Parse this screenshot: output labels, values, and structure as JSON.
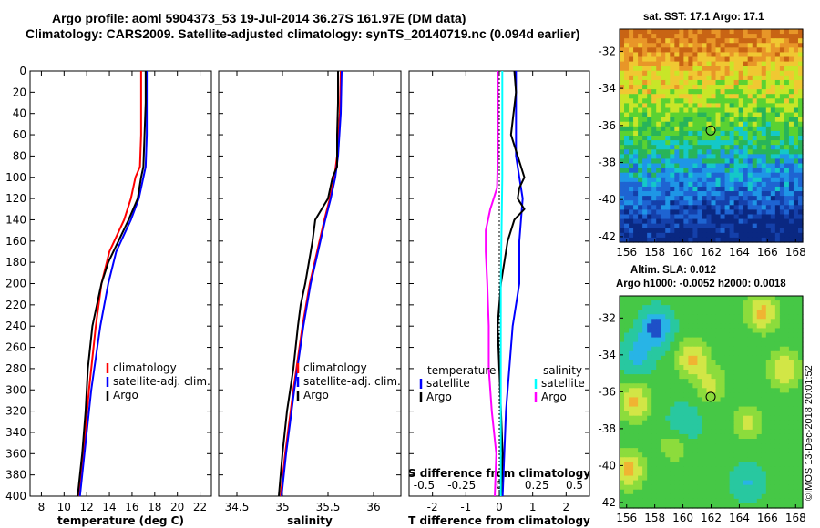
{
  "header": {
    "line1": "Argo profile: aoml 5904373_53 19-Jul-2014 36.27S 161.97E (DM data)",
    "line2": "Climatology: CARS2009. Satellite-adjusted climatology: synTS_20140719.nc (0.094d earlier)"
  },
  "colors": {
    "climatology": "#ff0000",
    "satellite": "#0000ff",
    "argo": "#000000",
    "sal_satellite": "#00ffff",
    "sal_argo": "#ff00ff"
  },
  "chart_data": [
    {
      "type": "line",
      "name": "temperature-panel",
      "xlabel": "temperature (deg C)",
      "ylabel": "depth",
      "xlim": [
        7,
        23
      ],
      "ylim": [
        400,
        0
      ],
      "xticks": [
        8,
        10,
        12,
        14,
        16,
        18,
        20,
        22
      ],
      "yticks": [
        0,
        20,
        40,
        60,
        80,
        100,
        120,
        140,
        160,
        180,
        200,
        220,
        240,
        260,
        280,
        300,
        320,
        340,
        360,
        380,
        400
      ],
      "legend": [
        "climatology",
        "satellite-adj. clim.",
        "Argo"
      ],
      "series": [
        {
          "name": "climatology",
          "color": "#ff0000",
          "depth": [
            0,
            20,
            60,
            90,
            100,
            120,
            140,
            170,
            200,
            240,
            300,
            360,
            400
          ],
          "values": [
            16.8,
            16.8,
            16.8,
            16.7,
            16.3,
            15.9,
            15.3,
            14.0,
            13.3,
            12.8,
            12.2,
            11.7,
            11.3
          ]
        },
        {
          "name": "satellite-adj. clim.",
          "color": "#0000ff",
          "depth": [
            0,
            20,
            60,
            90,
            100,
            120,
            140,
            170,
            200,
            240,
            300,
            360,
            400
          ],
          "values": [
            17.3,
            17.3,
            17.3,
            17.2,
            17.0,
            16.6,
            15.9,
            14.6,
            13.9,
            13.2,
            12.4,
            11.8,
            11.4
          ]
        },
        {
          "name": "Argo",
          "color": "#000000",
          "depth": [
            0,
            30,
            60,
            90,
            100,
            120,
            140,
            160,
            180,
            200,
            220,
            240,
            280,
            320,
            360,
            400
          ],
          "values": [
            17.2,
            17.2,
            17.1,
            17.0,
            16.8,
            16.5,
            15.7,
            14.8,
            13.9,
            13.3,
            12.9,
            12.5,
            12.1,
            11.9,
            11.6,
            11.2
          ]
        }
      ]
    },
    {
      "type": "line",
      "name": "salinity-panel",
      "xlabel": "salinity",
      "ylabel": "depth",
      "xlim": [
        34.3,
        36.3
      ],
      "ylim": [
        400,
        0
      ],
      "xticks": [
        34.5,
        35,
        35.5,
        36
      ],
      "yticks": [
        0,
        20,
        40,
        60,
        80,
        100,
        120,
        140,
        160,
        180,
        200,
        220,
        240,
        260,
        280,
        300,
        320,
        340,
        360,
        380,
        400
      ],
      "legend": [
        "climatology",
        "satellite-adj. clim.",
        "Argo"
      ],
      "series": [
        {
          "name": "climatology",
          "color": "#ff0000",
          "depth": [
            0,
            40,
            80,
            100,
            120,
            140,
            170,
            200,
            240,
            300,
            360,
            400
          ],
          "values": [
            35.64,
            35.63,
            35.6,
            35.57,
            35.52,
            35.46,
            35.38,
            35.3,
            35.22,
            35.12,
            35.03,
            34.98
          ]
        },
        {
          "name": "satellite-adj. clim.",
          "color": "#0000ff",
          "depth": [
            0,
            40,
            80,
            100,
            120,
            140,
            170,
            200,
            240,
            300,
            360,
            400
          ],
          "values": [
            35.65,
            35.64,
            35.61,
            35.58,
            35.53,
            35.47,
            35.39,
            35.31,
            35.23,
            35.13,
            35.04,
            34.99
          ]
        },
        {
          "name": "Argo",
          "color": "#000000",
          "depth": [
            0,
            30,
            60,
            90,
            100,
            120,
            130,
            140,
            160,
            180,
            200,
            220,
            240,
            280,
            320,
            360,
            400
          ],
          "values": [
            35.61,
            35.61,
            35.6,
            35.6,
            35.55,
            35.5,
            35.43,
            35.36,
            35.33,
            35.29,
            35.25,
            35.2,
            35.17,
            35.12,
            35.05,
            35.0,
            34.96
          ]
        }
      ]
    },
    {
      "type": "line",
      "name": "difference-panel",
      "xlabel": "T difference from climatology",
      "x2label": "S difference from climatology",
      "ylabel": "depth",
      "xlim": [
        -2.7,
        2.7
      ],
      "ylim": [
        400,
        0
      ],
      "xticks": [
        -2,
        -1,
        0,
        1,
        2
      ],
      "x2ticks": [
        "-0.5",
        "-0.25",
        "0",
        "0.25",
        "0.5"
      ],
      "yticks": [
        0,
        20,
        40,
        60,
        80,
        100,
        120,
        140,
        160,
        180,
        200,
        220,
        240,
        260,
        280,
        300,
        320,
        340,
        360,
        380,
        400
      ],
      "legend_temperature_title": "temperature",
      "legend_salinity_title": "salinity",
      "legend_temperature": [
        "satellite",
        "Argo"
      ],
      "legend_salinity": [
        "satellite",
        "Argo"
      ],
      "series": [
        {
          "name": "T satellite",
          "color": "#0000ff",
          "depth": [
            0,
            40,
            80,
            120,
            160,
            200,
            240,
            280,
            320,
            360,
            400
          ],
          "values": [
            0.5,
            0.5,
            0.5,
            0.7,
            0.6,
            0.6,
            0.4,
            0.3,
            0.2,
            0.15,
            0.1
          ]
        },
        {
          "name": "T Argo",
          "color": "#000000",
          "depth": [
            0,
            20,
            60,
            80,
            100,
            110,
            120,
            130,
            140,
            160,
            200,
            240,
            280,
            320,
            360,
            400
          ],
          "values": [
            0.45,
            0.5,
            0.35,
            0.55,
            0.75,
            0.6,
            0.55,
            0.75,
            0.45,
            0.25,
            0.05,
            -0.05,
            0.0,
            0.05,
            0.1,
            0.05
          ]
        },
        {
          "name": "S satellite",
          "color": "#00ffff",
          "depth": [
            0,
            100,
            200,
            300,
            400
          ],
          "values": [
            0.02,
            0.02,
            0.01,
            0.01,
            0.01
          ]
        },
        {
          "name": "S Argo",
          "color": "#ff00ff",
          "depth": [
            0,
            40,
            80,
            110,
            130,
            150,
            170,
            200,
            240,
            280,
            320,
            360,
            400
          ],
          "values": [
            -0.01,
            -0.01,
            -0.01,
            -0.015,
            -0.06,
            -0.09,
            -0.09,
            -0.08,
            -0.07,
            -0.07,
            -0.05,
            -0.02,
            -0.03
          ]
        }
      ]
    },
    {
      "type": "heatmap",
      "name": "sst-map",
      "title": "sat. SST: 17.1  Argo: 17.1",
      "xlim": [
        155.5,
        168.5
      ],
      "ylim": [
        -42.3,
        -30.8
      ],
      "xticks": [
        156,
        158,
        160,
        162,
        164,
        166,
        168
      ],
      "yticks": [
        -32,
        -34,
        -36,
        -38,
        -40,
        -42
      ],
      "marker": {
        "lon": 161.97,
        "lat": -36.27
      }
    },
    {
      "type": "heatmap",
      "name": "sla-map",
      "title1": "Altim. SLA: 0.012",
      "title2": "Argo h1000: -0.0052  h2000: 0.0018",
      "xlim": [
        155.5,
        168.5
      ],
      "ylim": [
        -42.3,
        -30.8
      ],
      "xticks": [
        156,
        158,
        160,
        162,
        164,
        166,
        168
      ],
      "yticks": [
        -32,
        -34,
        -36,
        -38,
        -40,
        -42
      ],
      "marker": {
        "lon": 161.97,
        "lat": -36.27
      }
    }
  ],
  "credit": "©IMOS 13-Dec-2018 20:01:52"
}
